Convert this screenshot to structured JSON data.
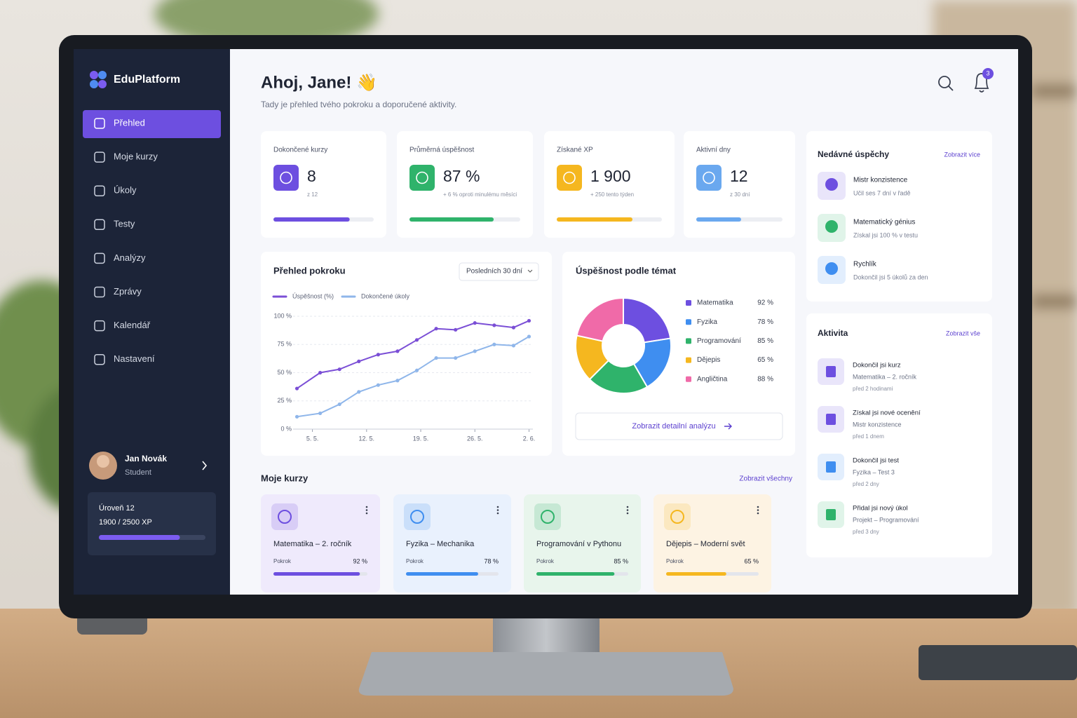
{
  "sidebar": {
    "brand": "EduPlatform",
    "nav": [
      "Přehled",
      "Moje kurzy",
      "Úkoly",
      "Testy",
      "Analýzy",
      "Zprávy",
      "Kalendář",
      "Nastavení"
    ],
    "user": {
      "name": "Jan Novák",
      "role": "Student"
    },
    "level": {
      "title": "Úroveň 12",
      "xp": "1900 / 2500 XP",
      "progress": 76
    }
  },
  "header": {
    "greeting": "Ahoj, Jane! 👋",
    "subtitle": "Tady je přehled tvého pokroku a doporučené aktivity.",
    "notifications": 3
  },
  "stats": [
    {
      "label": "Dokončené kurzy",
      "value": 8,
      "sub": "z 12",
      "progress": 76,
      "color": "#6d4fe0"
    },
    {
      "label": "Průměrná úspěšnost",
      "value": "87 %",
      "sub": "+ 6 % oproti minulému měsíci",
      "progress": 76,
      "color": "#2fb36b"
    },
    {
      "label": "Získané XP",
      "value": "1 900",
      "sub": "+ 250 tento týden",
      "progress": 72,
      "color": "#f5b71f"
    },
    {
      "label": "Aktivní dny",
      "value": 12,
      "sub": "z 30 dní",
      "progress": 52,
      "color": "#6aa8ef"
    }
  ],
  "progress_chart": {
    "type": "line",
    "title": "Přehled pokroku",
    "period": "Posledních 30 dní",
    "x": [
      3,
      6,
      8.5,
      11,
      13.5,
      16,
      18.5,
      21,
      23.5,
      26,
      28.5,
      31,
      33
    ],
    "xlim": [
      2.5,
      33.5
    ],
    "xticks": [
      {
        "value": 5,
        "label": "5. 5."
      },
      {
        "value": 12,
        "label": "12. 5."
      },
      {
        "value": 19,
        "label": "19. 5."
      },
      {
        "value": 26,
        "label": "26. 5."
      },
      {
        "value": 33,
        "label": "2. 6."
      }
    ],
    "ylim": [
      0,
      100
    ],
    "yticks": [
      {
        "value": 0,
        "label": "0 %"
      },
      {
        "value": 25,
        "label": "25 %"
      },
      {
        "value": 50,
        "label": "50 %"
      },
      {
        "value": 75,
        "label": "75 %"
      },
      {
        "value": 100,
        "label": "100 %"
      }
    ],
    "grid": true,
    "series": [
      {
        "name": "Úspěšnost (%)",
        "color": "#7b4fd6",
        "values": [
          36,
          50,
          53,
          60,
          66,
          69,
          79,
          89,
          88,
          94,
          92,
          90,
          96
        ]
      },
      {
        "name": "Dokončené úkoly",
        "color": "#8fb6ea",
        "values": [
          11,
          14,
          22,
          33,
          39,
          43,
          52,
          63,
          63,
          69,
          75,
          74,
          82
        ]
      }
    ]
  },
  "topics_chart": {
    "type": "pie",
    "title": "Úspěšnost podle témat",
    "categories": [
      "Matematika",
      "Fyzika",
      "Programování",
      "Dějepis",
      "Angličtina"
    ],
    "values": [
      92,
      78,
      85,
      65,
      88
    ],
    "value_labels": [
      "92 %",
      "78 %",
      "85 %",
      "65 %",
      "88 %"
    ],
    "colors": [
      "#6d4fe0",
      "#3f8ef0",
      "#2fb36b",
      "#f5b71f",
      "#f06aa8"
    ],
    "button": "Zobrazit detailní analýzu"
  },
  "courses": {
    "title": "Moje kurzy",
    "link": "Zobrazit všechny",
    "items": [
      {
        "name": "Matematika – 2. ročník",
        "label": "Pokrok",
        "value": 92,
        "value_label": "92 %",
        "color": "#6d4fe0",
        "bg": "#efeafc"
      },
      {
        "name": "Fyzika – Mechanika",
        "label": "Pokrok",
        "value": 78,
        "value_label": "78 %",
        "color": "#3f8ef0",
        "bg": "#e9f1fd"
      },
      {
        "name": "Programování v Pythonu",
        "label": "Pokrok",
        "value": 85,
        "value_label": "85 %",
        "color": "#2fb36b",
        "bg": "#e8f5ec"
      },
      {
        "name": "Dějepis – Moderní svět",
        "label": "Pokrok",
        "value": 65,
        "value_label": "65 %",
        "color": "#f5b71f",
        "bg": "#fdf3e3"
      }
    ]
  },
  "achievements": {
    "title": "Nedávné úspěchy",
    "link": "Zobrazit více",
    "items": [
      {
        "title": "Mistr konzistence",
        "text": "Učil ses 7 dní v řadě",
        "color": "#6d4fe0"
      },
      {
        "title": "Matematický génius",
        "text": "Získal jsi 100 % v testu",
        "color": "#2fb36b"
      },
      {
        "title": "Rychlík",
        "text": "Dokončil jsi 5 úkolů za den",
        "color": "#3f8ef0"
      }
    ]
  },
  "activity": {
    "title": "Aktivita",
    "link": "Zobrazit vše",
    "items": [
      {
        "title": "Dokončil jsi kurz",
        "text": "Matematika – 2. ročník",
        "time": "před 2 hodinami",
        "color": "#6d4fe0"
      },
      {
        "title": "Získal jsi nové ocenění",
        "text": "Mistr konzistence",
        "time": "před 1 dnem",
        "color": "#6d4fe0"
      },
      {
        "title": "Dokončil jsi test",
        "text": "Fyzika – Test 3",
        "time": "před 2 dny",
        "color": "#3f8ef0"
      },
      {
        "title": "Přidal jsi nový úkol",
        "text": "Projekt – Programování",
        "time": "před 3 dny",
        "color": "#2fb36b"
      }
    ]
  }
}
